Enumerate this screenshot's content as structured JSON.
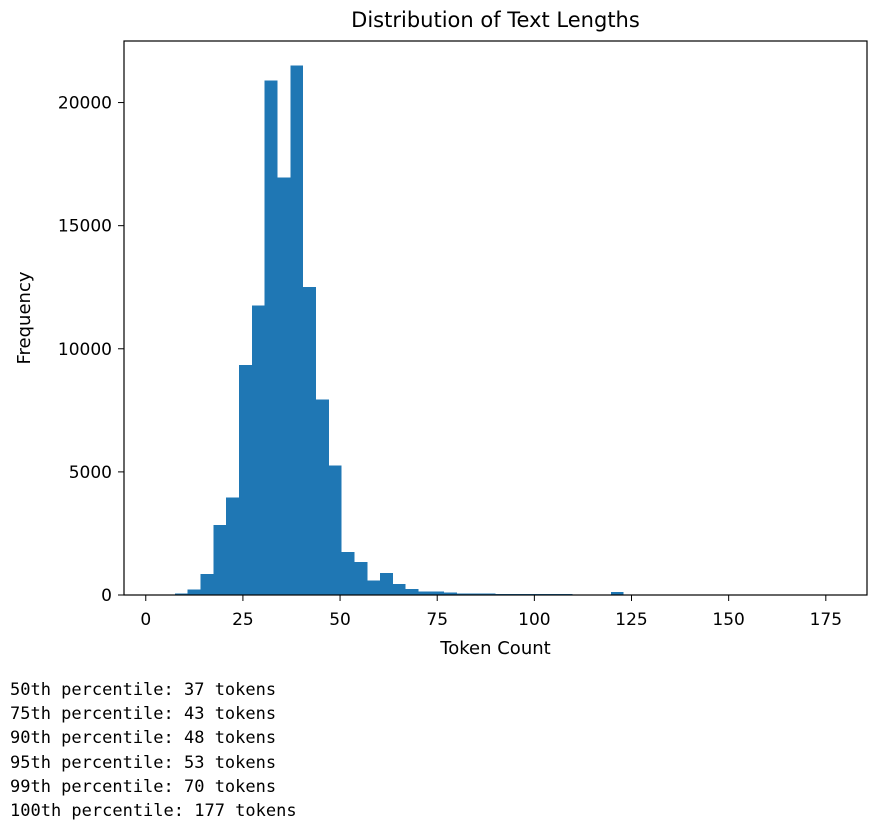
{
  "chart_data": {
    "type": "bar",
    "title": "Distribution of Text Lengths",
    "xlabel": "Token Count",
    "ylabel": "Frequency",
    "xlim": [
      -5.6,
      185.6
    ],
    "ylim": [
      0,
      22500
    ],
    "xticks": [
      0,
      25,
      50,
      75,
      100,
      125,
      150,
      175
    ],
    "yticks": [
      0,
      5000,
      10000,
      15000,
      20000
    ],
    "grid": false,
    "legend": "none",
    "bin_edges": [
      7.5,
      10.8,
      14.1,
      17.4,
      20.7,
      24.0,
      27.3,
      30.6,
      33.9,
      37.2,
      40.5,
      43.8,
      47.1,
      50.4,
      53.7,
      57.0,
      60.3,
      63.6,
      66.9,
      70.2,
      73.5,
      76.8,
      80.1,
      83.4,
      86.7,
      90.0,
      93.3,
      96.6,
      99.9,
      103.2,
      106.5,
      109.8,
      113.1,
      116.4,
      119.7,
      123.0,
      126.3,
      129.6,
      132.9,
      136.2,
      139.5,
      142.8,
      146.1,
      149.4,
      152.7,
      156.0,
      159.3,
      162.6,
      165.9,
      169.2,
      172.5,
      175.8
    ],
    "values": [
      70,
      230,
      850,
      2850,
      3950,
      9350,
      11750,
      20900,
      16950,
      21500,
      12500,
      7950,
      5250,
      1750,
      1350,
      580,
      900,
      450,
      250,
      150,
      150,
      100,
      60,
      60,
      60,
      50,
      50,
      50,
      50,
      50,
      50,
      30,
      20,
      30,
      120,
      20,
      10,
      10,
      10,
      10,
      10,
      10,
      10,
      10,
      5,
      5,
      5,
      5,
      5,
      5,
      5
    ],
    "colors": {
      "bar": "#1f77b4",
      "axes": "#000000"
    }
  },
  "output_lines": [
    "50th percentile: 37 tokens",
    "75th percentile: 43 tokens",
    "90th percentile: 48 tokens",
    "95th percentile: 53 tokens",
    "99th percentile: 70 tokens",
    "100th percentile: 177 tokens"
  ]
}
